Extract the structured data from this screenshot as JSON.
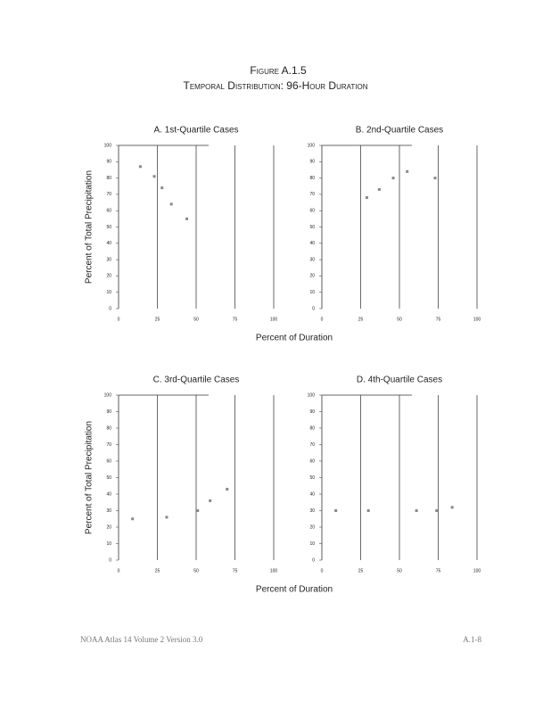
{
  "header": {
    "figure": "Figure A.1.5",
    "title": "Temporal Distribution: 96-Hour Duration"
  },
  "chart_data": [
    {
      "type": "scatter",
      "title": "A. 1st-Quartile Cases",
      "x_label": "Percent of Duration",
      "y_label": "Percent of Total Precipitation",
      "xlim": [
        0,
        100
      ],
      "ylim": [
        0,
        100
      ],
      "xticks": [
        0,
        25,
        50,
        75,
        100
      ],
      "yticks": [
        0,
        10,
        20,
        30,
        40,
        50,
        60,
        70,
        80,
        90,
        100
      ],
      "grid": true,
      "series": [
        {
          "color": "#888888",
          "x": [
            14,
            23,
            28,
            34,
            44
          ],
          "values": [
            87,
            81,
            74,
            64,
            55
          ]
        }
      ]
    },
    {
      "type": "scatter",
      "title": "B. 2nd-Quartile Cases",
      "xlim": [
        0,
        100
      ],
      "ylim": [
        0,
        100
      ],
      "xticks": [
        0,
        25,
        50,
        75,
        100
      ],
      "yticks": [
        0,
        10,
        20,
        30,
        40,
        50,
        60,
        70,
        80,
        90,
        100
      ],
      "grid": true,
      "series": [
        {
          "color": "#888888",
          "x": [
            29,
            37,
            46,
            55,
            73
          ],
          "values": [
            68,
            73,
            80,
            84,
            80
          ]
        }
      ]
    },
    {
      "type": "scatter",
      "title": "C. 3rd-Quartile Cases",
      "x_label": "Percent of Duration",
      "y_label": "Percent of Total Precipitation",
      "xlim": [
        0,
        100
      ],
      "ylim": [
        0,
        100
      ],
      "xticks": [
        0,
        25,
        50,
        75,
        100
      ],
      "yticks": [
        0,
        10,
        20,
        30,
        40,
        50,
        60,
        70,
        80,
        90,
        100
      ],
      "grid": true,
      "series": [
        {
          "color": "#888888",
          "x": [
            9,
            31,
            51,
            59,
            70
          ],
          "values": [
            25,
            26,
            30,
            36,
            43
          ]
        }
      ]
    },
    {
      "type": "scatter",
      "title": "D. 4th-Quartile Cases",
      "xlim": [
        0,
        100
      ],
      "ylim": [
        0,
        100
      ],
      "xticks": [
        0,
        25,
        50,
        75,
        100
      ],
      "yticks": [
        0,
        10,
        20,
        30,
        40,
        50,
        60,
        70,
        80,
        90,
        100
      ],
      "grid": true,
      "series": [
        {
          "color": "#888888",
          "x": [
            9,
            30,
            61,
            74,
            84
          ],
          "values": [
            30,
            30,
            30,
            30,
            32
          ]
        }
      ]
    }
  ],
  "footer": {
    "left": "NOAA Atlas 14 Volume 2 Version 3.0",
    "right": "A.1-8"
  }
}
